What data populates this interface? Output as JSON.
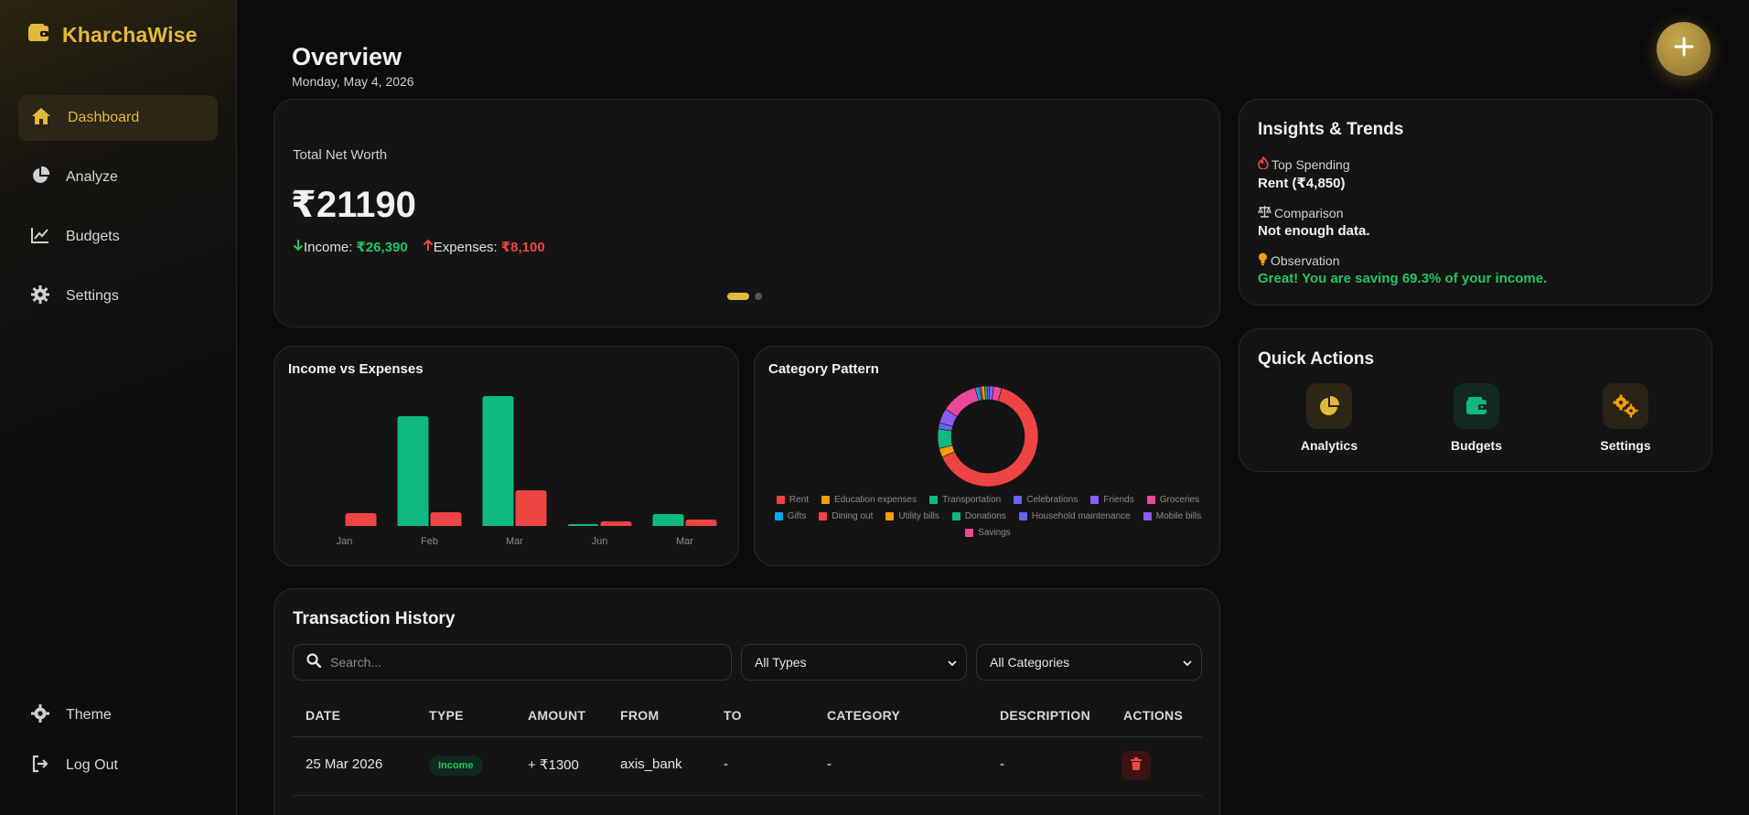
{
  "brand": {
    "name": "KharchaWise"
  },
  "sidebar": {
    "items": [
      {
        "label": "Dashboard",
        "icon": "home-icon",
        "active": true
      },
      {
        "label": "Analyze",
        "icon": "pie-chart-icon"
      },
      {
        "label": "Budgets",
        "icon": "line-chart-icon"
      },
      {
        "label": "Settings",
        "icon": "gear-icon"
      }
    ],
    "bottom": [
      {
        "label": "Theme",
        "icon": "gear-icon"
      },
      {
        "label": "Log Out",
        "icon": "logout-icon"
      }
    ]
  },
  "header": {
    "title": "Overview",
    "date": "Monday, May 4, 2026"
  },
  "net_worth": {
    "label": "Total Net Worth",
    "value": "₹21190",
    "income_label": "Income:",
    "income_value": "₹26,390",
    "expense_label": "Expenses:",
    "expense_value": "₹8,100"
  },
  "colors": {
    "accent": "#e2b93b",
    "income": "#10b981",
    "expense": "#ef4444"
  },
  "income_chart_title": "Income vs Expenses",
  "pie_chart_title": "Category Pattern",
  "chart_data": [
    {
      "type": "bar",
      "categories": [
        "Jan",
        "Feb",
        "Mar",
        "Jun",
        "Mar"
      ],
      "series": [
        {
          "values": [
            0,
            12000,
            14200,
            200,
            1300
          ],
          "color": "#10b981"
        },
        {
          "values": [
            1400,
            1500,
            3900,
            500,
            700
          ],
          "color": "#ef4444"
        }
      ],
      "ylim": [
        0,
        15000
      ],
      "grid": false
    },
    {
      "type": "pie",
      "donut": true,
      "labels": [
        "Rent",
        "Education expenses",
        "Transportation",
        "Celebrations",
        "Friends",
        "Groceries",
        "Gifts",
        "Dining out",
        "Utility bills",
        "Donations",
        "Household maintenance",
        "Mobile bills",
        "Savings"
      ],
      "values": [
        4850,
        220,
        480,
        150,
        360,
        900,
        100,
        50,
        80,
        60,
        60,
        100,
        200
      ],
      "colors": [
        "#ef4444",
        "#f59e0b",
        "#10b981",
        "#6366f1",
        "#8b5cf6",
        "#ec4899",
        "#0ea5e9",
        "#ef4444",
        "#f59e0b",
        "#10b981",
        "#6366f1",
        "#8b5cf6",
        "#ec4899"
      ],
      "legend": "bottom"
    }
  ],
  "transactions": {
    "title": "Transaction History",
    "search_placeholder": "Search...",
    "type_filter": "All Types",
    "category_filter": "All Categories",
    "headers": [
      "DATE",
      "TYPE",
      "AMOUNT",
      "FROM",
      "TO",
      "CATEGORY",
      "DESCRIPTION",
      "ACTIONS"
    ],
    "rows": [
      {
        "date": "25 Mar 2026",
        "type": "Income",
        "amount": "+ ₹1300",
        "from": "axis_bank",
        "to": "-",
        "category": "-",
        "description": "-"
      }
    ]
  },
  "insights": {
    "title": "Insights & Trends",
    "top_label": "Top Spending",
    "top_value": "Rent (₹4,850)",
    "compare_label": "Comparison",
    "compare_value": "Not enough data.",
    "obs_label": "Observation",
    "obs_value": "Great! You are saving 69.3% of your income."
  },
  "quick_actions": {
    "title": "Quick Actions",
    "items": [
      {
        "label": "Analytics",
        "icon": "pie-chart-icon"
      },
      {
        "label": "Budgets",
        "icon": "wallet-icon"
      },
      {
        "label": "Settings",
        "icon": "gears-icon"
      }
    ]
  }
}
